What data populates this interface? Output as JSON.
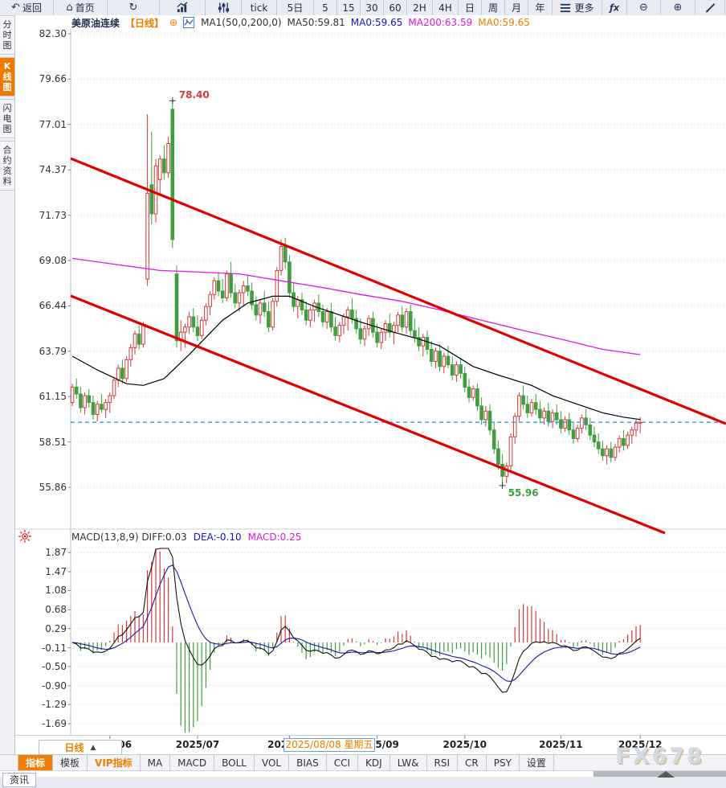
{
  "window": {
    "watermark": "FX678"
  },
  "top_toolbar": {
    "items": [
      {
        "name": "back-button",
        "icon": "back-arrow",
        "label": "返回"
      },
      {
        "name": "home-button",
        "icon": "home",
        "label": "首页"
      },
      {
        "name": "refresh-button",
        "icon": "refresh",
        "label": ""
      },
      {
        "name": "chart-type-line-button",
        "icon": "line-chart",
        "label": ""
      },
      {
        "name": "chart-type-volume-button",
        "icon": "volume-sliders",
        "label": ""
      },
      {
        "name": "interval-tick-button",
        "icon": "",
        "label": "tick"
      },
      {
        "name": "interval-5d-button",
        "icon": "",
        "label": "5日"
      },
      {
        "name": "interval-5m-button",
        "icon": "",
        "label": "5"
      },
      {
        "name": "interval-15m-button",
        "icon": "",
        "label": "15"
      },
      {
        "name": "interval-30m-button",
        "icon": "",
        "label": "30"
      },
      {
        "name": "interval-60m-button",
        "icon": "",
        "label": "60"
      },
      {
        "name": "interval-2h-button",
        "icon": "",
        "label": "2H"
      },
      {
        "name": "interval-4h-button",
        "icon": "",
        "label": "4H"
      },
      {
        "name": "interval-day-button",
        "icon": "",
        "label": "日"
      },
      {
        "name": "interval-week-button",
        "icon": "",
        "label": "周"
      },
      {
        "name": "interval-month-button",
        "icon": "",
        "label": "月"
      },
      {
        "name": "interval-year-button",
        "icon": "",
        "label": "年"
      },
      {
        "name": "more-menu-button",
        "icon": "hamburger",
        "label": "更多"
      },
      {
        "name": "formula-button",
        "icon": "fx",
        "label": ""
      },
      {
        "name": "zoom-out-button",
        "icon": "zoom-out",
        "label": ""
      },
      {
        "name": "zoom-in-button",
        "icon": "zoom-in",
        "label": ""
      },
      {
        "name": "draw-tool-button",
        "icon": "pencil",
        "label": ""
      }
    ]
  },
  "sidebar": {
    "tabs": [
      {
        "name": "tab-time-chart",
        "label": "分时图",
        "active": false
      },
      {
        "name": "tab-kline-chart",
        "label": "K线图",
        "active": true
      },
      {
        "name": "tab-lightning-chart",
        "label": "闪电图",
        "active": false
      },
      {
        "name": "tab-contract-info",
        "label": "合约资料",
        "active": false
      }
    ]
  },
  "price_header": {
    "segments": [
      {
        "text": "美原油连续",
        "color": "#1c2b4a",
        "bold": true
      },
      {
        "text": "【日线】",
        "color": "#f07d00",
        "bold": true
      },
      {
        "text": "⊕",
        "color": "#f07d00",
        "bold": false
      },
      {
        "icon": "kline-mini"
      },
      {
        "text": "MA1(50,0,200,0)",
        "color": "#333333",
        "bold": false
      },
      {
        "text": "MA50:59.81",
        "color": "#333333",
        "bold": false
      },
      {
        "text": "MA0:59.65",
        "color": "#1414c8",
        "bold": false
      },
      {
        "text": "MA200:63.59",
        "color": "#e316e3",
        "bold": false
      },
      {
        "text": "MA0:59.65",
        "color": "#f07d00",
        "bold": false
      }
    ]
  },
  "macd_header": {
    "segments": [
      {
        "text": "MACD(13,8,9) DIFF:0.03",
        "color": "#333333",
        "bold": false
      },
      {
        "text": "DEA:-0.10",
        "color": "#1414c8",
        "bold": false
      },
      {
        "text": "MACD:0.25",
        "color": "#e316e3",
        "bold": false
      }
    ]
  },
  "axes": {
    "price_labels": [
      "82.30",
      "79.66",
      "77.01",
      "74.37",
      "71.73",
      "69.08",
      "66.44",
      "63.79",
      "61.15",
      "58.51",
      "55.86"
    ],
    "macd_labels": [
      "1.87",
      "1.47",
      "1.08",
      "0.68",
      "0.29",
      "-0.11",
      "-0.50",
      "-0.90",
      "-1.29",
      "-1.69"
    ]
  },
  "x_axis": {
    "months": [
      {
        "label": "2025/06",
        "i": 9
      },
      {
        "label": "2025/07",
        "i": 30
      },
      {
        "label": "2025/08",
        "i": 52
      },
      {
        "label": "2025/09",
        "i": 73
      },
      {
        "label": "2025/10",
        "i": 94
      },
      {
        "label": "2025/11",
        "i": 117
      },
      {
        "label": "2025/12",
        "i": 136
      }
    ],
    "crosshair_label": "2025/08/08 星期五",
    "crosshair_i": 57
  },
  "bottom": {
    "period_label": "日线",
    "period_arrow": "▲",
    "news_label": "资讯",
    "tabs": [
      {
        "name": "tab-indicator",
        "label": "指标",
        "state": "active"
      },
      {
        "name": "tab-template",
        "label": "模板",
        "state": ""
      },
      {
        "name": "tab-vip-indicator",
        "label": "VIP指标",
        "state": "vip"
      },
      {
        "name": "tab-ma",
        "label": "MA",
        "state": ""
      },
      {
        "name": "tab-macd",
        "label": "MACD",
        "state": ""
      },
      {
        "name": "tab-boll",
        "label": "BOLL",
        "state": ""
      },
      {
        "name": "tab-vol",
        "label": "VOL",
        "state": ""
      },
      {
        "name": "tab-bias",
        "label": "BIAS",
        "state": ""
      },
      {
        "name": "tab-cci",
        "label": "CCI",
        "state": ""
      },
      {
        "name": "tab-kdj",
        "label": "KDJ",
        "state": ""
      },
      {
        "name": "tab-lw",
        "label": "LW&",
        "state": ""
      },
      {
        "name": "tab-rsi",
        "label": "RSI",
        "state": ""
      },
      {
        "name": "tab-cr",
        "label": "CR",
        "state": ""
      },
      {
        "name": "tab-psy",
        "label": "PSY",
        "state": ""
      },
      {
        "name": "tab-settings",
        "label": "设置",
        "state": ""
      }
    ]
  },
  "colors": {
    "accent_orange": "#f07d00",
    "up_red": "#d23b3b",
    "down_green": "#3f9e3f",
    "trend_red": "#e00000",
    "ma50": "#000000",
    "ma200": "#e316e3",
    "dashed_blue": "#2288ee",
    "diff_line": "#111111",
    "dea_line": "#1a1aaa"
  },
  "chart_data": {
    "type": "candlestick",
    "symbol": "美原油连续",
    "interval": "日线",
    "title": "美原油连续【日线】",
    "price_axis_range": [
      55.86,
      82.3
    ],
    "macd_axis_range": [
      -1.69,
      1.87
    ],
    "color_rule": "red=up, green=down",
    "price_line": 59.65,
    "annotations": {
      "high": {
        "text": "78.40",
        "i": 24,
        "price": 78.4
      },
      "low": {
        "text": "55.96",
        "i": 103,
        "price": 55.96
      }
    },
    "trendlines": [
      {
        "price_start": 75.03,
        "price_end": 59.56,
        "extent": "full"
      },
      {
        "price_start": 67.02,
        "price_end": 53.19,
        "extent": "partial"
      }
    ],
    "macd": {
      "params": [
        13,
        8,
        9
      ],
      "diff": 0.03,
      "dea": -0.1,
      "bar": 0.25,
      "note": "histogram=2*(DIFF-DEA), computed from closes"
    },
    "ma50_points": [
      [
        0,
        63.5
      ],
      [
        6,
        62.7
      ],
      [
        13,
        61.9
      ],
      [
        17,
        61.8
      ],
      [
        22,
        62.2
      ],
      [
        28,
        63.6
      ],
      [
        36,
        65.6
      ],
      [
        42,
        66.6
      ],
      [
        48,
        67.0
      ],
      [
        52,
        67.0
      ],
      [
        58,
        66.4
      ],
      [
        69,
        65.5
      ],
      [
        77,
        64.9
      ],
      [
        83,
        64.5
      ],
      [
        88,
        64.1
      ],
      [
        96,
        62.9
      ],
      [
        102,
        62.4
      ],
      [
        110,
        61.8
      ],
      [
        115,
        61.2
      ],
      [
        121,
        60.7
      ],
      [
        127,
        60.2
      ],
      [
        132,
        59.95
      ],
      [
        136,
        59.81
      ]
    ],
    "ma200_points": [
      [
        0,
        69.2
      ],
      [
        12,
        68.8
      ],
      [
        21,
        68.5
      ],
      [
        31,
        68.4
      ],
      [
        40,
        68.3
      ],
      [
        50,
        67.9
      ],
      [
        60,
        67.5
      ],
      [
        69,
        67.1
      ],
      [
        79,
        66.7
      ],
      [
        88,
        66.2
      ],
      [
        98,
        65.6
      ],
      [
        108,
        65.0
      ],
      [
        117,
        64.5
      ],
      [
        127,
        63.9
      ],
      [
        136,
        63.59
      ]
    ],
    "ohlc": [
      [
        60.8,
        61.9,
        60.6,
        61.7
      ],
      [
        61.7,
        62.2,
        61.0,
        61.3
      ],
      [
        61.3,
        61.7,
        60.2,
        60.5
      ],
      [
        60.5,
        61.4,
        60.1,
        61.2
      ],
      [
        61.2,
        61.6,
        60.5,
        60.8
      ],
      [
        60.8,
        61.2,
        59.8,
        60.1
      ],
      [
        60.1,
        60.9,
        59.7,
        60.7
      ],
      [
        60.7,
        61.3,
        60.2,
        60.4
      ],
      [
        60.4,
        61.0,
        59.9,
        60.8
      ],
      [
        60.8,
        61.4,
        60.2,
        61.2
      ],
      [
        61.2,
        62.3,
        61.0,
        62.1
      ],
      [
        62.1,
        63.0,
        61.7,
        62.8
      ],
      [
        62.8,
        63.3,
        61.9,
        62.2
      ],
      [
        62.2,
        63.5,
        62.0,
        63.3
      ],
      [
        63.3,
        64.2,
        62.9,
        64.0
      ],
      [
        64.0,
        65.0,
        63.6,
        64.8
      ],
      [
        64.8,
        65.3,
        63.9,
        64.2
      ],
      [
        64.2,
        65.5,
        64.0,
        65.3
      ],
      [
        68.0,
        77.6,
        67.6,
        73.0
      ],
      [
        73.5,
        76.6,
        71.2,
        71.8
      ],
      [
        71.8,
        75.0,
        71.3,
        74.6
      ],
      [
        73.8,
        75.2,
        73.0,
        75.0
      ],
      [
        75.0,
        75.8,
        73.8,
        74.2
      ],
      [
        74.2,
        76.3,
        73.9,
        75.9
      ],
      [
        77.9,
        78.4,
        69.8,
        70.3
      ],
      [
        68.3,
        68.8,
        64.0,
        64.4
      ],
      [
        64.4,
        65.6,
        63.8,
        64.9
      ],
      [
        64.9,
        65.4,
        64.0,
        65.2
      ],
      [
        65.2,
        66.1,
        64.8,
        65.8
      ],
      [
        65.8,
        66.3,
        64.9,
        65.2
      ],
      [
        65.2,
        65.9,
        64.4,
        64.7
      ],
      [
        64.7,
        65.8,
        64.5,
        65.6
      ],
      [
        65.6,
        66.6,
        65.3,
        66.4
      ],
      [
        66.4,
        67.3,
        65.9,
        67.1
      ],
      [
        67.1,
        68.1,
        66.8,
        67.9
      ],
      [
        67.9,
        68.4,
        67.0,
        67.3
      ],
      [
        67.3,
        68.0,
        66.6,
        66.9
      ],
      [
        66.9,
        68.5,
        66.7,
        68.3
      ],
      [
        68.3,
        69.0,
        66.9,
        67.2
      ],
      [
        67.2,
        67.7,
        66.3,
        66.6
      ],
      [
        66.6,
        67.4,
        66.1,
        67.2
      ],
      [
        67.2,
        67.9,
        66.4,
        67.6
      ],
      [
        67.6,
        68.2,
        67.0,
        67.3
      ],
      [
        67.3,
        67.8,
        66.2,
        66.5
      ],
      [
        66.5,
        67.0,
        65.6,
        65.9
      ],
      [
        65.9,
        66.8,
        65.4,
        66.6
      ],
      [
        66.6,
        67.3,
        65.8,
        66.1
      ],
      [
        66.1,
        66.7,
        64.9,
        65.2
      ],
      [
        65.2,
        66.9,
        65.0,
        66.7
      ],
      [
        66.7,
        68.7,
        66.4,
        68.5
      ],
      [
        68.5,
        70.3,
        68.2,
        69.9
      ],
      [
        69.9,
        70.4,
        68.6,
        69.0
      ],
      [
        69.0,
        69.4,
        66.9,
        67.2
      ],
      [
        67.2,
        67.8,
        66.1,
        66.4
      ],
      [
        66.4,
        67.0,
        65.7,
        66.8
      ],
      [
        66.8,
        67.2,
        65.9,
        66.2
      ],
      [
        66.2,
        66.7,
        65.3,
        65.6
      ],
      [
        65.6,
        66.4,
        65.2,
        66.2
      ],
      [
        66.2,
        66.8,
        65.5,
        66.6
      ],
      [
        66.6,
        67.1,
        65.8,
        66.1
      ],
      [
        66.1,
        66.5,
        65.2,
        65.5
      ],
      [
        65.5,
        66.3,
        65.1,
        66.1
      ],
      [
        66.1,
        66.6,
        64.9,
        65.2
      ],
      [
        65.2,
        65.8,
        64.4,
        64.7
      ],
      [
        64.7,
        65.5,
        64.3,
        65.3
      ],
      [
        65.3,
        66.0,
        64.8,
        65.8
      ],
      [
        65.8,
        66.4,
        65.0,
        66.2
      ],
      [
        66.2,
        66.9,
        65.4,
        65.7
      ],
      [
        65.7,
        66.2,
        64.8,
        65.1
      ],
      [
        65.1,
        65.7,
        64.2,
        64.5
      ],
      [
        64.5,
        65.3,
        64.1,
        65.1
      ],
      [
        65.1,
        65.9,
        64.7,
        65.7
      ],
      [
        65.7,
        66.1,
        64.6,
        64.9
      ],
      [
        64.9,
        65.4,
        64.0,
        64.3
      ],
      [
        64.3,
        65.1,
        63.9,
        64.9
      ],
      [
        64.9,
        65.6,
        64.4,
        65.4
      ],
      [
        65.4,
        66.0,
        64.6,
        64.9
      ],
      [
        64.9,
        65.5,
        64.2,
        65.3
      ],
      [
        65.3,
        66.1,
        64.9,
        65.9
      ],
      [
        65.9,
        66.4,
        64.9,
        65.2
      ],
      [
        65.2,
        66.3,
        64.8,
        66.1
      ],
      [
        66.1,
        66.5,
        64.7,
        65.0
      ],
      [
        65.0,
        65.7,
        64.3,
        64.6
      ],
      [
        64.6,
        65.2,
        63.8,
        64.1
      ],
      [
        64.1,
        64.8,
        63.5,
        64.6
      ],
      [
        64.6,
        65.0,
        63.6,
        63.9
      ],
      [
        63.9,
        64.4,
        62.9,
        63.2
      ],
      [
        63.2,
        64.0,
        62.8,
        63.8
      ],
      [
        63.8,
        64.2,
        62.6,
        62.9
      ],
      [
        62.9,
        63.7,
        62.5,
        63.5
      ],
      [
        63.5,
        64.1,
        62.8,
        63.0
      ],
      [
        63.0,
        63.5,
        62.1,
        62.4
      ],
      [
        62.4,
        63.2,
        62.0,
        63.0
      ],
      [
        63.0,
        63.4,
        62.2,
        62.5
      ],
      [
        62.5,
        62.9,
        61.4,
        61.7
      ],
      [
        61.7,
        62.2,
        60.8,
        61.1
      ],
      [
        61.1,
        61.8,
        60.9,
        61.6
      ],
      [
        61.6,
        61.9,
        60.3,
        60.6
      ],
      [
        60.6,
        61.1,
        59.5,
        59.8
      ],
      [
        59.8,
        60.6,
        59.4,
        60.3
      ],
      [
        60.3,
        60.7,
        58.9,
        59.2
      ],
      [
        59.2,
        59.7,
        57.8,
        58.1
      ],
      [
        58.1,
        58.6,
        56.9,
        57.2
      ],
      [
        57.2,
        57.8,
        55.96,
        56.5
      ],
      [
        56.5,
        57.3,
        56.1,
        57.1
      ],
      [
        57.1,
        59.0,
        56.8,
        58.8
      ],
      [
        58.8,
        60.2,
        58.4,
        60.0
      ],
      [
        60.0,
        61.4,
        59.7,
        61.2
      ],
      [
        61.2,
        61.8,
        60.4,
        60.7
      ],
      [
        60.7,
        61.2,
        59.9,
        60.2
      ],
      [
        60.2,
        61.0,
        60.0,
        60.8
      ],
      [
        60.8,
        61.3,
        60.1,
        60.4
      ],
      [
        60.4,
        60.9,
        59.6,
        59.9
      ],
      [
        59.9,
        60.5,
        59.5,
        60.3
      ],
      [
        60.3,
        60.8,
        59.4,
        59.7
      ],
      [
        59.7,
        60.4,
        59.3,
        60.2
      ],
      [
        60.2,
        60.7,
        59.5,
        59.8
      ],
      [
        59.8,
        60.3,
        59.0,
        59.3
      ],
      [
        59.3,
        60.0,
        59.1,
        59.8
      ],
      [
        59.8,
        60.2,
        58.9,
        59.2
      ],
      [
        59.2,
        59.7,
        58.4,
        58.7
      ],
      [
        58.7,
        59.5,
        58.5,
        59.3
      ],
      [
        59.3,
        60.1,
        59.0,
        59.9
      ],
      [
        59.9,
        60.4,
        59.2,
        59.5
      ],
      [
        59.5,
        59.9,
        58.6,
        58.9
      ],
      [
        58.9,
        59.4,
        58.2,
        58.5
      ],
      [
        58.5,
        59.0,
        57.8,
        58.1
      ],
      [
        58.1,
        58.6,
        57.4,
        57.7
      ],
      [
        57.7,
        58.3,
        57.2,
        58.1
      ],
      [
        58.1,
        58.5,
        57.3,
        57.6
      ],
      [
        57.6,
        58.4,
        57.4,
        58.2
      ],
      [
        58.2,
        58.9,
        57.9,
        58.7
      ],
      [
        58.7,
        59.2,
        58.0,
        58.3
      ],
      [
        58.3,
        59.1,
        58.1,
        58.9
      ],
      [
        58.9,
        59.4,
        58.4,
        59.2
      ],
      [
        59.2,
        59.8,
        58.8,
        59.6
      ],
      [
        59.6,
        59.95,
        59.0,
        59.65
      ]
    ]
  }
}
